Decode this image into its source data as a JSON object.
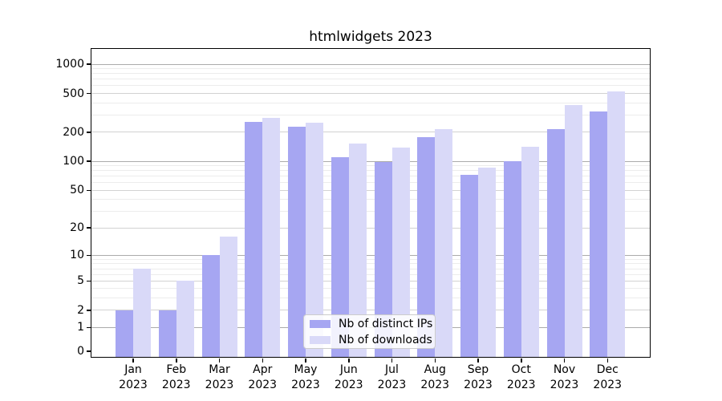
{
  "title": "htmlwidgets 2023",
  "chart_data": {
    "type": "bar",
    "title": "htmlwidgets 2023",
    "xlabel": "",
    "ylabel": "",
    "y_scale": "log10(1+v) pseudo-log",
    "ylim": [
      0,
      1430
    ],
    "grid": "major+minor",
    "legend_position": "bottom-center-inside",
    "categories": [
      "Jan 2023",
      "Feb 2023",
      "Mar 2023",
      "Apr 2023",
      "May 2023",
      "Jun 2023",
      "Jul 2023",
      "Aug 2023",
      "Sep 2023",
      "Oct 2023",
      "Nov 2023",
      "Dec 2023"
    ],
    "x_tick_months": [
      "Jan",
      "Feb",
      "Mar",
      "Apr",
      "May",
      "Jun",
      "Jul",
      "Aug",
      "Sep",
      "Oct",
      "Nov",
      "Dec"
    ],
    "x_tick_year": "2023",
    "series": [
      {
        "name": "Nb of distinct IPs",
        "color": "#a6a6f2",
        "values": [
          2,
          2,
          10,
          255,
          228,
          111,
          98,
          177,
          73,
          101,
          216,
          326
        ]
      },
      {
        "name": "Nb of downloads",
        "color": "#d9d9f8",
        "values": [
          7,
          5,
          16,
          280,
          250,
          152,
          138,
          214,
          86,
          142,
          380,
          530
        ]
      }
    ],
    "y_ticks": [
      {
        "value": 0,
        "label": "0"
      },
      {
        "value": 1,
        "label": "1"
      },
      {
        "value": 2,
        "label": "2"
      },
      {
        "value": 5,
        "label": "5"
      },
      {
        "value": 10,
        "label": "10"
      },
      {
        "value": 20,
        "label": "20"
      },
      {
        "value": 50,
        "label": "50"
      },
      {
        "value": 100,
        "label": "100"
      },
      {
        "value": 200,
        "label": "200"
      },
      {
        "value": 500,
        "label": "500"
      },
      {
        "value": 1000,
        "label": "1000"
      }
    ],
    "y_minor_ticks": [
      3,
      4,
      6,
      7,
      8,
      9,
      30,
      40,
      60,
      70,
      80,
      90,
      300,
      400,
      600,
      700,
      800,
      900
    ]
  },
  "colors": {
    "bar_ips": "#a6a6f2",
    "bar_downloads": "#d9d9f8",
    "grid_decade": "#ababab",
    "grid_major": "#d2d2d2",
    "grid_minor": "#ececec",
    "spine": "#000000",
    "background": "#ffffff",
    "legend_border": "#cccccc"
  },
  "legend": {
    "items": [
      {
        "label": "Nb of distinct IPs"
      },
      {
        "label": "Nb of downloads"
      }
    ]
  }
}
